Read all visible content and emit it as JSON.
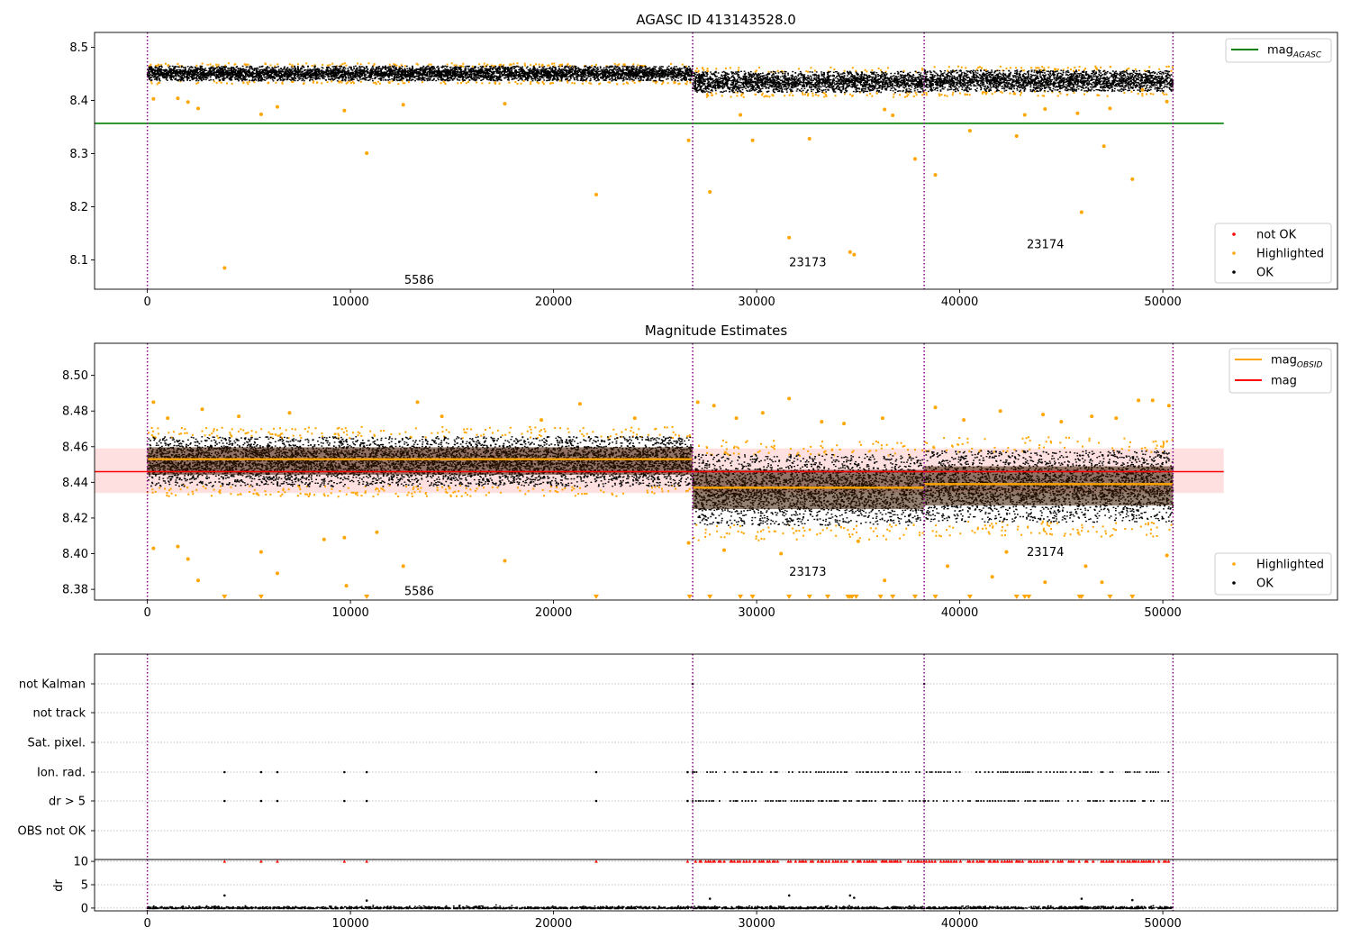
{
  "colors": {
    "ok": "#000000",
    "highlighted": "#ffa500",
    "not_ok": "#ff0000",
    "mag_agasc": "#008000",
    "mag_obsid": "#ffa500",
    "mag": "#ff0000",
    "obsid_line": "#800080",
    "grid": "#b0b0b0"
  },
  "chart_data": [
    {
      "type": "scatter",
      "title": "AGASC ID 413143528.0",
      "xlim": [
        -2600,
        58600
      ],
      "ylim": [
        8.045,
        8.528
      ],
      "xticks": [
        0,
        10000,
        20000,
        30000,
        40000,
        50000
      ],
      "xtick_labels": [
        "0",
        "10000",
        "20000",
        "30000",
        "40000",
        "50000"
      ],
      "yticks": [
        8.1,
        8.2,
        8.3,
        8.4,
        8.5
      ],
      "ytick_labels": [
        "8.1",
        "8.2",
        "8.3",
        "8.4",
        "8.5"
      ],
      "obsid_boundaries": [
        0,
        26850,
        38250,
        50500
      ],
      "obsid_labels": [
        {
          "text": "5586",
          "x": 12650,
          "y": 8.063
        },
        {
          "text": "23173",
          "x": 31600,
          "y": 8.096
        },
        {
          "text": "23174",
          "x": 43300,
          "y": 8.13
        }
      ],
      "mag_agasc": {
        "value": 8.357,
        "x_range": [
          -2600,
          53000
        ]
      },
      "ok_segments": [
        {
          "x_range": [
            0,
            26850
          ],
          "center": 8.452,
          "spread": 0.014
        },
        {
          "x_range": [
            26850,
            38250
          ],
          "center": 8.436,
          "spread": 0.02
        },
        {
          "x_range": [
            38250,
            50500
          ],
          "center": 8.438,
          "spread": 0.02
        }
      ],
      "highlighted_points": [
        [
          3800,
          8.085
        ],
        [
          10800,
          8.301
        ],
        [
          22100,
          8.223
        ],
        [
          26650,
          8.325
        ],
        [
          27700,
          8.228
        ],
        [
          29800,
          8.325
        ],
        [
          31600,
          8.142
        ],
        [
          32600,
          8.328
        ],
        [
          34600,
          8.115
        ],
        [
          34800,
          8.11
        ],
        [
          37800,
          8.29
        ],
        [
          38800,
          8.26
        ],
        [
          40500,
          8.343
        ],
        [
          42800,
          8.333
        ],
        [
          46000,
          8.19
        ],
        [
          47100,
          8.314
        ],
        [
          48500,
          8.252
        ],
        [
          300,
          8.403
        ],
        [
          1500,
          8.404
        ],
        [
          2000,
          8.397
        ],
        [
          2500,
          8.385
        ],
        [
          5600,
          8.374
        ],
        [
          6400,
          8.388
        ],
        [
          9700,
          8.381
        ],
        [
          12600,
          8.392
        ],
        [
          17600,
          8.394
        ],
        [
          29200,
          8.373
        ],
        [
          36700,
          8.372
        ],
        [
          43200,
          8.373
        ],
        [
          44200,
          8.384
        ],
        [
          45800,
          8.376
        ],
        [
          47400,
          8.385
        ],
        [
          50200,
          8.398
        ],
        [
          49000,
          8.42
        ],
        [
          36300,
          8.383
        ]
      ],
      "legend": [
        {
          "label": "mag",
          "subscript": "AGASC",
          "kind": "line",
          "color_key": "mag_agasc"
        },
        {
          "label": "not OK",
          "kind": "dot",
          "color_key": "not_ok"
        },
        {
          "label": "Highlighted",
          "kind": "dot",
          "color_key": "highlighted"
        },
        {
          "label": "OK",
          "kind": "dot",
          "color_key": "ok"
        }
      ]
    },
    {
      "type": "scatter",
      "title": "Magnitude Estimates",
      "xlim": [
        -2600,
        58600
      ],
      "ylim": [
        8.374,
        8.518
      ],
      "xticks": [
        0,
        10000,
        20000,
        30000,
        40000,
        50000
      ],
      "xtick_labels": [
        "0",
        "10000",
        "20000",
        "30000",
        "40000",
        "50000"
      ],
      "yticks": [
        8.38,
        8.4,
        8.42,
        8.44,
        8.46,
        8.48,
        8.5
      ],
      "ytick_labels": [
        "8.38",
        "8.40",
        "8.42",
        "8.44",
        "8.46",
        "8.48",
        "8.50"
      ],
      "obsid_boundaries": [
        0,
        26850,
        38250,
        50500
      ],
      "obsid_labels": [
        {
          "text": "5586",
          "x": 12650,
          "y": 8.379
        },
        {
          "text": "23173",
          "x": 31600,
          "y": 8.39
        },
        {
          "text": "23174",
          "x": 43300,
          "y": 8.401
        }
      ],
      "mag": {
        "value": 8.446,
        "band": [
          8.434,
          8.459
        ],
        "x_range": [
          -2600,
          53000
        ]
      },
      "mag_obsid": [
        {
          "x_range": [
            0,
            26850
          ],
          "value": 8.453
        },
        {
          "x_range": [
            26850,
            38250
          ],
          "value": 8.437
        },
        {
          "x_range": [
            38250,
            50500
          ],
          "value": 8.439
        }
      ],
      "ok_segments": [
        {
          "x_range": [
            0,
            26850
          ],
          "center": 8.452,
          "spread": 0.014
        },
        {
          "x_range": [
            26850,
            38250
          ],
          "center": 8.436,
          "spread": 0.02
        },
        {
          "x_range": [
            38250,
            50500
          ],
          "center": 8.438,
          "spread": 0.02
        }
      ],
      "highlighted_points": [
        [
          300,
          8.403
        ],
        [
          1500,
          8.404
        ],
        [
          2000,
          8.397
        ],
        [
          2500,
          8.385
        ],
        [
          5600,
          8.401
        ],
        [
          6400,
          8.389
        ],
        [
          8700,
          8.408
        ],
        [
          9700,
          8.409
        ],
        [
          9800,
          8.382
        ],
        [
          11300,
          8.412
        ],
        [
          12600,
          8.393
        ],
        [
          17600,
          8.396
        ],
        [
          26650,
          8.406
        ],
        [
          31200,
          8.4
        ],
        [
          36300,
          8.385
        ],
        [
          39400,
          8.393
        ],
        [
          41600,
          8.387
        ],
        [
          44200,
          8.384
        ],
        [
          46200,
          8.393
        ],
        [
          47000,
          8.384
        ],
        [
          50200,
          8.399
        ],
        [
          35000,
          8.407
        ],
        [
          28400,
          8.402
        ],
        [
          42300,
          8.401
        ],
        [
          300,
          8.485
        ],
        [
          2700,
          8.481
        ],
        [
          13300,
          8.485
        ],
        [
          21300,
          8.484
        ],
        [
          27100,
          8.485
        ],
        [
          27900,
          8.483
        ],
        [
          31600,
          8.487
        ],
        [
          38800,
          8.482
        ],
        [
          42000,
          8.48
        ],
        [
          48800,
          8.486
        ],
        [
          49500,
          8.486
        ],
        [
          50300,
          8.483
        ],
        [
          1000,
          8.476
        ],
        [
          4500,
          8.477
        ],
        [
          7000,
          8.479
        ],
        [
          14500,
          8.477
        ],
        [
          19400,
          8.475
        ],
        [
          24000,
          8.476
        ],
        [
          30300,
          8.479
        ],
        [
          33200,
          8.474
        ],
        [
          36200,
          8.476
        ],
        [
          40200,
          8.475
        ],
        [
          44100,
          8.478
        ],
        [
          46500,
          8.477
        ],
        [
          47700,
          8.476
        ],
        [
          45000,
          8.474
        ],
        [
          29000,
          8.476
        ],
        [
          34300,
          8.473
        ]
      ],
      "clipped_markers_x": [
        3800,
        5600,
        10800,
        22100,
        26700,
        27700,
        29200,
        29800,
        31600,
        32600,
        33500,
        34500,
        34600,
        34700,
        34900,
        36100,
        36700,
        37800,
        38800,
        40500,
        42800,
        43200,
        43400,
        45900,
        46000,
        47400,
        48500
      ],
      "legend_top": [
        {
          "label": "mag",
          "subscript": "OBSID",
          "kind": "line",
          "color_key": "mag_obsid"
        },
        {
          "label": "mag",
          "kind": "line",
          "color_key": "mag"
        }
      ],
      "legend_bottom": [
        {
          "label": "Highlighted",
          "kind": "dot",
          "color_key": "highlighted"
        },
        {
          "label": "OK",
          "kind": "dot",
          "color_key": "ok"
        }
      ]
    },
    {
      "type": "scatter",
      "title": "",
      "xlim": [
        -2600,
        58600
      ],
      "category_labels": [
        "not Kalman",
        "not track",
        "Sat. pixel.",
        "Ion. rad.",
        "dr > 5",
        "OBS not OK"
      ],
      "obsid_boundaries": [
        0,
        26850,
        38250,
        50500
      ],
      "flag_points": {
        "not Kalman": [
          26850,
          38250
        ],
        "not track": [],
        "Sat. pixel.": [],
        "Ion. rad.": {
          "sparse": [
            3800,
            5600,
            6400,
            9700,
            10800,
            22100,
            26600
          ],
          "dense_from": 26850,
          "dense_to": 50300
        },
        "dr > 5": {
          "sparse": [
            3800,
            5600,
            6400,
            9700,
            10800,
            22100,
            26600
          ],
          "dense_from": 26850,
          "dense_to": 50300
        },
        "OBS not OK": []
      }
    },
    {
      "type": "scatter",
      "title": "",
      "ylabel": "dr",
      "xlim": [
        -2600,
        58600
      ],
      "ylim": [
        -0.6,
        10.4
      ],
      "yticks": [
        0,
        5,
        10
      ],
      "ytick_labels": [
        "0",
        "5",
        "10"
      ],
      "xticks": [
        0,
        10000,
        20000,
        30000,
        40000,
        50000
      ],
      "xtick_labels": [
        "0",
        "10000",
        "20000",
        "30000",
        "40000",
        "50000"
      ],
      "obsid_boundaries": [
        0,
        26850,
        38250,
        50500
      ],
      "capped_value": 10,
      "capped_sparse_x": [
        3800,
        5600,
        6400,
        9700,
        10800,
        22100,
        26600
      ],
      "outlier_points": [
        [
          3800,
          2.7
        ],
        [
          10800,
          1.6
        ],
        [
          27700,
          2
        ],
        [
          31600,
          2.7
        ],
        [
          34600,
          2.7
        ],
        [
          34800,
          2.2
        ],
        [
          46000,
          2
        ],
        [
          48500,
          1.7
        ]
      ]
    }
  ]
}
